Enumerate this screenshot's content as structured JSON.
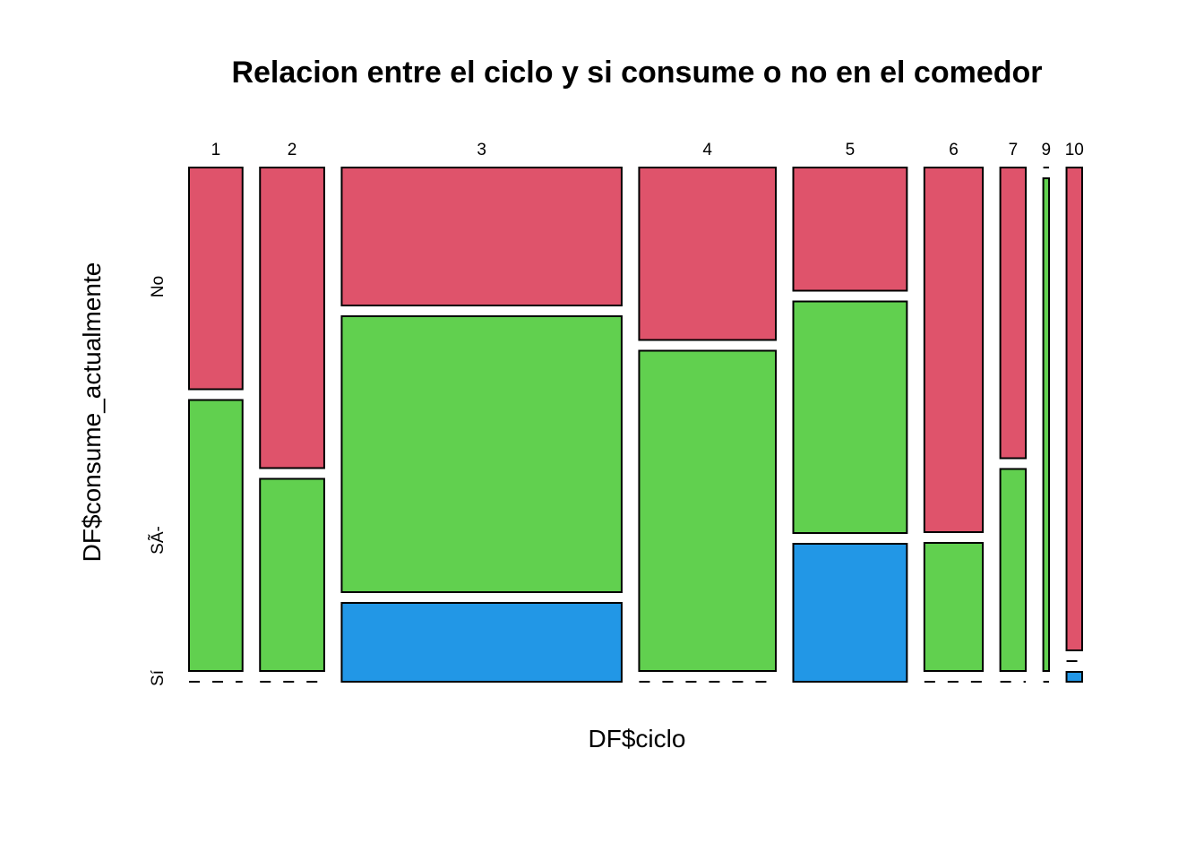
{
  "chart_data": {
    "type": "mosaic",
    "title": "Relacion entre el ciclo y si consume o no en el comedor",
    "xlabel": "DF$ciclo",
    "ylabel": "DF$consume_actualmente",
    "categories": [
      "1",
      "2",
      "3",
      "4",
      "5",
      "6",
      "7",
      "9",
      "10"
    ],
    "column_proportions": [
      0.065,
      0.078,
      0.34,
      0.166,
      0.138,
      0.071,
      0.031,
      0.007,
      0.019
    ],
    "levels_top_to_bottom": [
      "No",
      "SÃ-",
      "Sí"
    ],
    "colors": {
      "No": "#DF536B",
      "SÃ-": "#61D04F",
      "Sí": "#2297E6"
    },
    "values": {
      "No": [
        0.45,
        0.61,
        0.28,
        0.35,
        0.25,
        0.74,
        0.59,
        0.0,
        0.98
      ],
      "SÃ-": [
        0.55,
        0.39,
        0.56,
        0.65,
        0.47,
        0.26,
        0.41,
        1.0,
        0.0
      ],
      "Sí": [
        0.0,
        0.0,
        0.16,
        0.0,
        0.28,
        0.0,
        0.0,
        0.0,
        0.02
      ]
    }
  }
}
